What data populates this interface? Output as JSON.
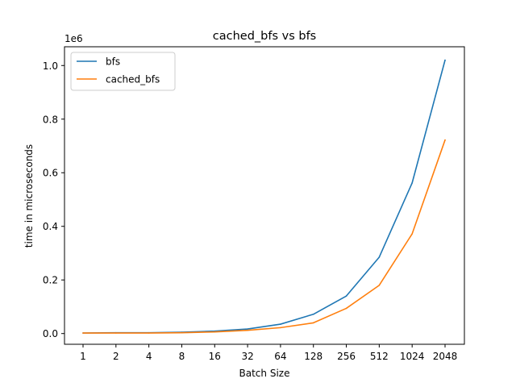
{
  "chart_data": {
    "type": "line",
    "title": "cached_bfs vs bfs",
    "xlabel": "Batch Size",
    "ylabel": "time in microseconds",
    "categories": [
      "1",
      "2",
      "4",
      "8",
      "16",
      "32",
      "64",
      "128",
      "256",
      "512",
      "1024",
      "2048"
    ],
    "y_offset_label": "1e6",
    "ylim": [
      -0.04,
      1.07
    ],
    "y_ticks": [
      0.0,
      0.2,
      0.4,
      0.6,
      0.8,
      1.0
    ],
    "y_tick_labels": [
      "0.0",
      "0.2",
      "0.4",
      "0.6",
      "0.8",
      "1.0"
    ],
    "grid": false,
    "legend": "top-left",
    "series": [
      {
        "name": "bfs",
        "color": "#1f77b4",
        "values": [
          0.002,
          0.003,
          0.003,
          0.005,
          0.009,
          0.017,
          0.035,
          0.072,
          0.14,
          0.285,
          0.562,
          1.02
        ]
      },
      {
        "name": "cached_bfs",
        "color": "#ff7f0e",
        "values": [
          0.002,
          0.002,
          0.002,
          0.003,
          0.006,
          0.012,
          0.022,
          0.04,
          0.094,
          0.18,
          0.372,
          0.722
        ]
      }
    ]
  }
}
